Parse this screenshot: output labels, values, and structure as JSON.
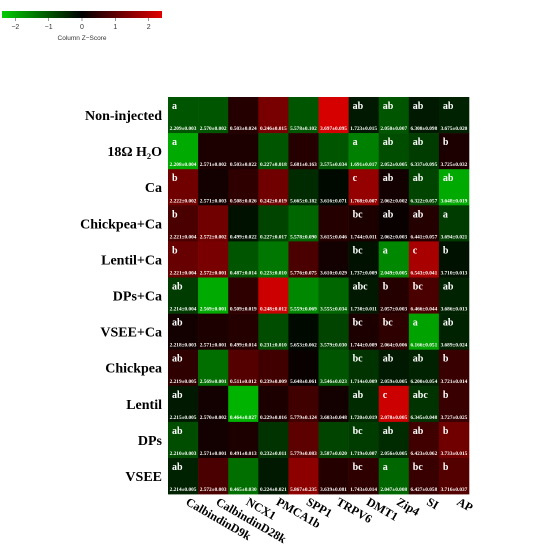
{
  "chart_data": {
    "type": "heatmap",
    "legend": {
      "title": "Column Z−Score",
      "ticks": [
        "−2",
        "−1",
        "0",
        "1",
        "2"
      ],
      "range": [
        -2.4,
        2.4
      ],
      "colors": {
        "low": "#00cc00",
        "mid": "#000000",
        "high": "#e00000"
      }
    },
    "rows": [
      "Non-injected",
      "18Ω H₂O",
      "Ca",
      "Chickpea+Ca",
      "Lentil+Ca",
      "DPs+Ca",
      "VSEE+Ca",
      "Chickpea",
      "Lentil",
      "DPs",
      "VSEE"
    ],
    "columns": [
      "CalbindinD9k",
      "CalbindinD28k",
      "NCX1",
      "PMCA1b",
      "SPP1",
      "TRPV6",
      "DMT1",
      "Zip4",
      "SI",
      "AP"
    ],
    "z": [
      [
        -1.0,
        -1.0,
        0.4,
        1.3,
        -1.0,
        2.3,
        -0.3,
        -1.0,
        -0.3,
        -0.4
      ],
      [
        -2.0,
        0.3,
        0.3,
        -1.0,
        0.4,
        -1.0,
        -1.5,
        -0.9,
        -0.7,
        0.3
      ],
      [
        1.2,
        0.2,
        0.5,
        1.2,
        -0.5,
        -0.1,
        1.6,
        0.2,
        -0.8,
        -2.0
      ],
      [
        0.8,
        1.2,
        -0.2,
        -0.8,
        -1.2,
        0.4,
        0.3,
        0.1,
        0.4,
        -0.7
      ],
      [
        1.1,
        1.3,
        -1.0,
        -1.4,
        0.8,
        0.2,
        -0.2,
        -1.6,
        1.8,
        -0.2
      ],
      [
        -0.7,
        -2.0,
        0.5,
        2.2,
        -1.6,
        -1.2,
        -0.3,
        0.4,
        0.8,
        -0.4
      ],
      [
        0.2,
        0.3,
        0.4,
        -0.9,
        -0.1,
        -0.8,
        0.3,
        0.5,
        -1.9,
        -0.4
      ],
      [
        0.5,
        -1.3,
        0.9,
        0.7,
        0.1,
        -1.0,
        -0.6,
        -0.3,
        -0.4,
        0.6
      ],
      [
        -0.3,
        0.2,
        -2.1,
        0.3,
        0.7,
        0.2,
        -0.5,
        2.2,
        -0.6,
        0.6
      ],
      [
        -0.9,
        0.2,
        0.3,
        -0.6,
        1.0,
        -0.8,
        -0.7,
        -0.5,
        0.7,
        1.2
      ],
      [
        -0.4,
        0.8,
        -1.3,
        -0.3,
        1.5,
        0.4,
        0.5,
        -1.2,
        0.6,
        0.9
      ]
    ],
    "letters": [
      [
        "a",
        "",
        "",
        "",
        "",
        "",
        "ab",
        "ab",
        "ab",
        "ab"
      ],
      [
        "a",
        "",
        "",
        "",
        "",
        "",
        "a",
        "ab",
        "ab",
        "b"
      ],
      [
        "b",
        "",
        "",
        "",
        "",
        "",
        "c",
        "ab",
        "ab",
        "ab"
      ],
      [
        "b",
        "",
        "",
        "",
        "",
        "",
        "bc",
        "ab",
        "ab",
        "a"
      ],
      [
        "b",
        "",
        "",
        "",
        "",
        "",
        "bc",
        "a",
        "c",
        "b"
      ],
      [
        "ab",
        "",
        "",
        "",
        "",
        "",
        "abc",
        "b",
        "bc",
        "ab"
      ],
      [
        "ab",
        "",
        "",
        "",
        "",
        "",
        "bc",
        "bc",
        "a",
        "ab"
      ],
      [
        "ab",
        "",
        "",
        "",
        "",
        "",
        "bc",
        "ab",
        "ab",
        "b"
      ],
      [
        "ab",
        "",
        "",
        "",
        "",
        "",
        "ab",
        "c",
        "abc",
        "b"
      ],
      [
        "ab",
        "",
        "",
        "",
        "",
        "",
        "bc",
        "ab",
        "ab",
        "b"
      ],
      [
        "ab",
        "",
        "",
        "",
        "",
        "",
        "bc",
        "a",
        "bc",
        "b"
      ]
    ],
    "values": [
      [
        "2.209±0.003",
        "2.570±0.002",
        "0.503±0.024",
        "0.246±0.015",
        "5.578±0.102",
        "3.697±0.095",
        "1.723±0.015",
        "2.050±0.007",
        "6.308±0.098",
        "3.675±0.020"
      ],
      [
        "2.208±0.004",
        "2.571±0.002",
        "0.503±0.022",
        "0.227±0.018",
        "5.681±0.163",
        "3.575±0.034",
        "1.691±0.017",
        "2.052±0.005",
        "6.337±0.095",
        "3.725±0.032"
      ],
      [
        "2.222±0.002",
        "2.571±0.003",
        "0.508±0.026",
        "0.242±0.019",
        "5.665±0.182",
        "3.616±0.071",
        "1.768±0.007",
        "2.062±0.002",
        "6.322±0.057",
        "3.648±0.019"
      ],
      [
        "2.221±0.004",
        "2.572±0.002",
        "0.499±0.022",
        "0.227±0.017",
        "5.578±0.090",
        "3.615±0.046",
        "1.744±0.011",
        "2.062±0.003",
        "6.441±0.057",
        "3.694±0.021"
      ],
      [
        "2.221±0.004",
        "2.572±0.001",
        "0.487±0.014",
        "0.223±0.010",
        "5.776±0.075",
        "3.610±0.029",
        "1.737±0.009",
        "2.049±0.005",
        "6.543±0.041",
        "3.710±0.013"
      ],
      [
        "2.214±0.004",
        "2.569±0.001",
        "0.509±0.019",
        "0.248±0.012",
        "5.559±0.069",
        "3.555±0.034",
        "1.730±0.011",
        "2.057±0.003",
        "6.466±0.044",
        "3.686±0.013"
      ],
      [
        "2.218±0.003",
        "2.571±0.001",
        "0.499±0.014",
        "0.231±0.010",
        "5.653±0.062",
        "3.579±0.030",
        "1.744±0.009",
        "2.064±0.006",
        "6.166±0.051",
        "3.689±0.024"
      ],
      [
        "2.219±0.005",
        "2.569±0.001",
        "0.511±0.012",
        "0.239±0.009",
        "5.648±0.061",
        "3.546±0.023",
        "1.714±0.009",
        "2.059±0.005",
        "6.200±0.054",
        "3.721±0.014"
      ],
      [
        "2.215±0.005",
        "2.570±0.002",
        "0.464±0.027",
        "0.229±0.016",
        "5.779±0.124",
        "3.603±0.048",
        "1.720±0.019",
        "2.078±0.005",
        "6.345±0.048",
        "3.727±0.025"
      ],
      [
        "2.210±0.003",
        "2.571±0.001",
        "0.491±0.013",
        "0.232±0.011",
        "5.779±0.083",
        "3.587±0.020",
        "1.719±0.007",
        "2.056±0.005",
        "6.423±0.062",
        "3.733±0.015"
      ],
      [
        "2.214±0.005",
        "2.572±0.003",
        "0.465±0.030",
        "0.224±0.021",
        "5.867±0.235",
        "3.639±0.081",
        "1.743±0.014",
        "2.047±0.008",
        "6.427±0.058",
        "3.716±0.037"
      ]
    ]
  }
}
